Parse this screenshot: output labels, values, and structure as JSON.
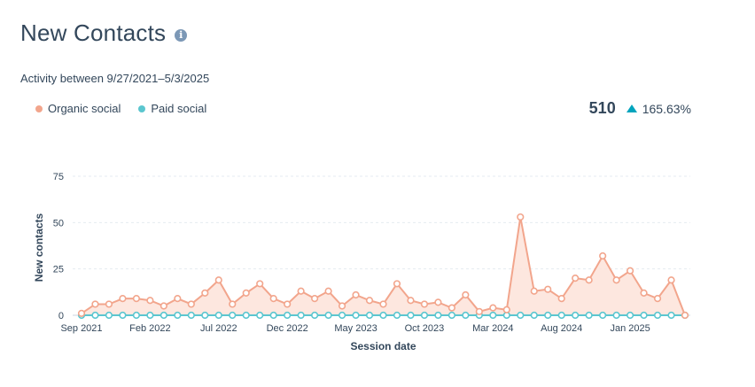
{
  "header": {
    "title": "New Contacts",
    "info_icon": "info-icon"
  },
  "subtitle": "Activity between 9/27/2021–5/3/2025",
  "summary": {
    "total": "510",
    "change": "165.63%",
    "trend_icon": "triangle-up-icon",
    "trend_color": "#00a4bd"
  },
  "colors": {
    "organic": "#f2a58c",
    "organic_fill": "#fde3d9",
    "paid": "#5bc6cf"
  },
  "chart_data": {
    "type": "line",
    "title": "",
    "xlabel": "Session date",
    "ylabel": "New contacts",
    "ylim": [
      0,
      75
    ],
    "yticks": [
      0,
      25,
      50,
      75
    ],
    "grid": true,
    "legend": "top-left",
    "x_tick_labels": [
      {
        "index": 0,
        "label": "Sep 2021"
      },
      {
        "index": 5,
        "label": "Feb 2022"
      },
      {
        "index": 10,
        "label": "Jul 2022"
      },
      {
        "index": 15,
        "label": "Dec 2022"
      },
      {
        "index": 20,
        "label": "May 2023"
      },
      {
        "index": 25,
        "label": "Oct 2023"
      },
      {
        "index": 30,
        "label": "Mar 2024"
      },
      {
        "index": 35,
        "label": "Aug 2024"
      },
      {
        "index": 40,
        "label": "Jan 2025"
      }
    ],
    "series": [
      {
        "name": "Organic social",
        "color": "#f2a58c",
        "values": [
          1,
          6,
          6,
          9,
          9,
          8,
          5,
          9,
          6,
          12,
          19,
          6,
          12,
          17,
          9,
          6,
          13,
          9,
          13,
          5,
          11,
          8,
          6,
          17,
          8,
          6,
          7,
          4,
          11,
          2,
          4,
          3,
          53,
          13,
          14,
          9,
          20,
          19,
          32,
          19,
          24,
          12,
          9,
          19,
          0
        ]
      },
      {
        "name": "Paid social",
        "color": "#5bc6cf",
        "values": [
          0,
          0,
          0,
          0,
          0,
          0,
          0,
          0,
          0,
          0,
          0,
          0,
          0,
          0,
          0,
          0,
          0,
          0,
          0,
          0,
          0,
          0,
          0,
          0,
          0,
          0,
          0,
          0,
          0,
          0,
          0,
          0,
          0,
          0,
          0,
          0,
          0,
          0,
          0,
          0,
          0,
          0,
          0,
          0,
          0
        ]
      }
    ]
  }
}
